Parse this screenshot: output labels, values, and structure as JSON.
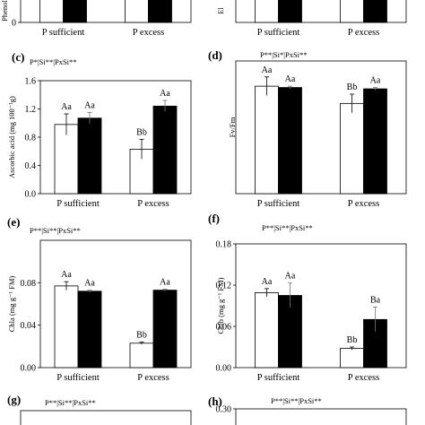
{
  "panels": [
    {
      "key": "a",
      "panel_label": "",
      "stats": "",
      "ylabel": "Phenol",
      "categories": [
        "P sufficient",
        "P excess"
      ],
      "ylim": [
        0,
        1
      ],
      "yticks": [
        0
      ],
      "tick_decimals": 0,
      "minus_si": [
        0.9,
        0.9
      ],
      "plus_si": [
        0.9,
        0.9
      ],
      "minus_err": [
        0,
        0
      ],
      "plus_err": [
        0,
        0
      ],
      "minus_letters": [
        "",
        ""
      ],
      "plus_letters": [
        "",
        ""
      ]
    },
    {
      "key": "b",
      "panel_label": "",
      "stats": "",
      "ylabel": "El",
      "categories": [
        "P sufficient",
        "P excess"
      ],
      "ylim": [
        0,
        1
      ],
      "yticks": [],
      "tick_decimals": 0,
      "minus_si": [
        0.9,
        0.9
      ],
      "plus_si": [
        0.9,
        0.9
      ],
      "minus_err": [
        0,
        0
      ],
      "plus_err": [
        0,
        0
      ],
      "minus_letters": [
        "",
        ""
      ],
      "plus_letters": [
        "",
        ""
      ]
    },
    {
      "key": "c",
      "panel_label": "(c)",
      "stats": "P*|Si**|PxSi**",
      "ylabel": "Ascorbic acid (mg 100⁻¹g)",
      "categories": [
        "P sufficient",
        "P excess"
      ],
      "ylim": [
        0,
        1.6
      ],
      "yticks": [
        0,
        0.4,
        0.8,
        1.2,
        1.6
      ],
      "tick_decimals": 1,
      "minus_si": [
        0.98,
        0.63
      ],
      "plus_si": [
        1.07,
        1.24
      ],
      "minus_err": [
        0.15,
        0.14
      ],
      "plus_err": [
        0.08,
        0.08
      ],
      "minus_letters": [
        "Aa",
        "Bb"
      ],
      "plus_letters": [
        "Aa",
        "Aa"
      ]
    },
    {
      "key": "d",
      "panel_label": "(d)",
      "stats": "P**|Si*|PxSi**",
      "ylabel": "Fv/Fm",
      "categories": [
        "P sufficient",
        "P excess"
      ],
      "ylim": [
        0,
        1
      ],
      "yticks": [],
      "tick_decimals": 1,
      "minus_si": [
        0.81,
        0.68
      ],
      "plus_si": [
        0.8,
        0.79
      ],
      "minus_err": [
        0.07,
        0.07
      ],
      "plus_err": [
        0.01,
        0.01
      ],
      "minus_letters": [
        "Aa",
        "Bb"
      ],
      "plus_letters": [
        "Aa",
        "Aa"
      ]
    },
    {
      "key": "e",
      "panel_label": "(e)",
      "stats": "P**|Si**|PxSi**",
      "ylabel": "Chla (mg g⁻¹ FM)",
      "categories": [
        "P sufficient",
        "P excess"
      ],
      "ylim": [
        0,
        0.12
      ],
      "yticks": [
        0,
        0.04,
        0.08
      ],
      "tick_decimals": 2,
      "minus_si": [
        0.077,
        0.023
      ],
      "plus_si": [
        0.072,
        0.073
      ],
      "minus_err": [
        0.004,
        0.001
      ],
      "plus_err": [
        0.001,
        0.001
      ],
      "minus_letters": [
        "Aa",
        "Bb"
      ],
      "plus_letters": [
        "Aa",
        "Aa"
      ]
    },
    {
      "key": "f",
      "panel_label": "(f)",
      "stats": "P**|Si**|PxSi**",
      "ylabel": "Chlb (mg g⁻¹ FM)",
      "categories": [
        "P sufficient",
        "P excess"
      ],
      "ylim": [
        0,
        0.18
      ],
      "yticks": [
        0,
        0.06,
        0.12,
        0.18
      ],
      "tick_decimals": 2,
      "minus_si": [
        0.109,
        0.028
      ],
      "plus_si": [
        0.105,
        0.07
      ],
      "minus_err": [
        0.006,
        0.002
      ],
      "plus_err": [
        0.018,
        0.018
      ],
      "minus_letters": [
        "Aa",
        "Bb"
      ],
      "plus_letters": [
        "Aa",
        "Ba"
      ]
    },
    {
      "key": "g",
      "panel_label": "(g)",
      "stats": "P**|Si**|PxSi**",
      "ylabel": "",
      "categories": [],
      "ylim": [
        0,
        1
      ],
      "yticks": [],
      "tick_decimals": 0,
      "minus_si": [],
      "plus_si": [],
      "minus_err": [],
      "plus_err": [],
      "minus_letters": [],
      "plus_letters": []
    },
    {
      "key": "h",
      "panel_label": "(h)",
      "stats": "P**|Si**|PxSi**",
      "ylabel": "",
      "categories": [],
      "ylim": [
        0,
        0.3
      ],
      "yticks": [
        0.3
      ],
      "tick_decimals": 2,
      "minus_si": [],
      "plus_si": [],
      "minus_err": [],
      "plus_err": [],
      "minus_letters": [],
      "plus_letters": []
    }
  ],
  "colors": {
    "minus_si_fill": "#ffffff",
    "plus_si_fill": "#000000",
    "axis": "#000000"
  },
  "chart_data": [
    {
      "type": "bar",
      "panel": "a",
      "ylabel": "Phenol",
      "categories": [
        "P sufficient",
        "P excess"
      ],
      "series": [
        {
          "values": [
            0.9,
            0.9
          ]
        },
        {
          "values": [
            0.9,
            0.9
          ]
        }
      ]
    },
    {
      "type": "bar",
      "panel": "b",
      "ylabel": "El",
      "categories": [
        "P sufficient",
        "P excess"
      ],
      "series": [
        {
          "values": [
            0.9,
            0.9
          ]
        },
        {
          "values": [
            0.9,
            0.9
          ]
        }
      ]
    },
    {
      "type": "bar",
      "panel": "c",
      "annotation": "P*|Si**|PxSi**",
      "ylabel": "Ascorbic acid (mg 100⁻¹g)",
      "ylim": [
        0,
        1.6
      ],
      "categories": [
        "P sufficient",
        "P excess"
      ],
      "series": [
        {
          "values": [
            0.98,
            0.63
          ]
        },
        {
          "values": [
            1.07,
            1.24
          ]
        }
      ]
    },
    {
      "type": "bar",
      "panel": "d",
      "annotation": "P**|Si*|PxSi**",
      "ylabel": "Fv/Fm",
      "ylim": [
        0,
        1
      ],
      "categories": [
        "P sufficient",
        "P excess"
      ],
      "series": [
        {
          "values": [
            0.81,
            0.68
          ]
        },
        {
          "values": [
            0.8,
            0.79
          ]
        }
      ]
    },
    {
      "type": "bar",
      "panel": "e",
      "annotation": "P**|Si**|PxSi**",
      "ylabel": "Chla (mg g⁻¹ FM)",
      "ylim": [
        0,
        0.12
      ],
      "categories": [
        "P sufficient",
        "P excess"
      ],
      "series": [
        {
          "values": [
            0.077,
            0.023
          ]
        },
        {
          "values": [
            0.072,
            0.073
          ]
        }
      ]
    },
    {
      "type": "bar",
      "panel": "f",
      "annotation": "P**|Si**|PxSi**",
      "ylabel": "Chlb (mg g⁻¹ FM)",
      "ylim": [
        0,
        0.18
      ],
      "categories": [
        "P sufficient",
        "P excess"
      ],
      "series": [
        {
          "values": [
            0.109,
            0.028
          ]
        },
        {
          "values": [
            0.105,
            0.07
          ]
        }
      ]
    }
  ]
}
